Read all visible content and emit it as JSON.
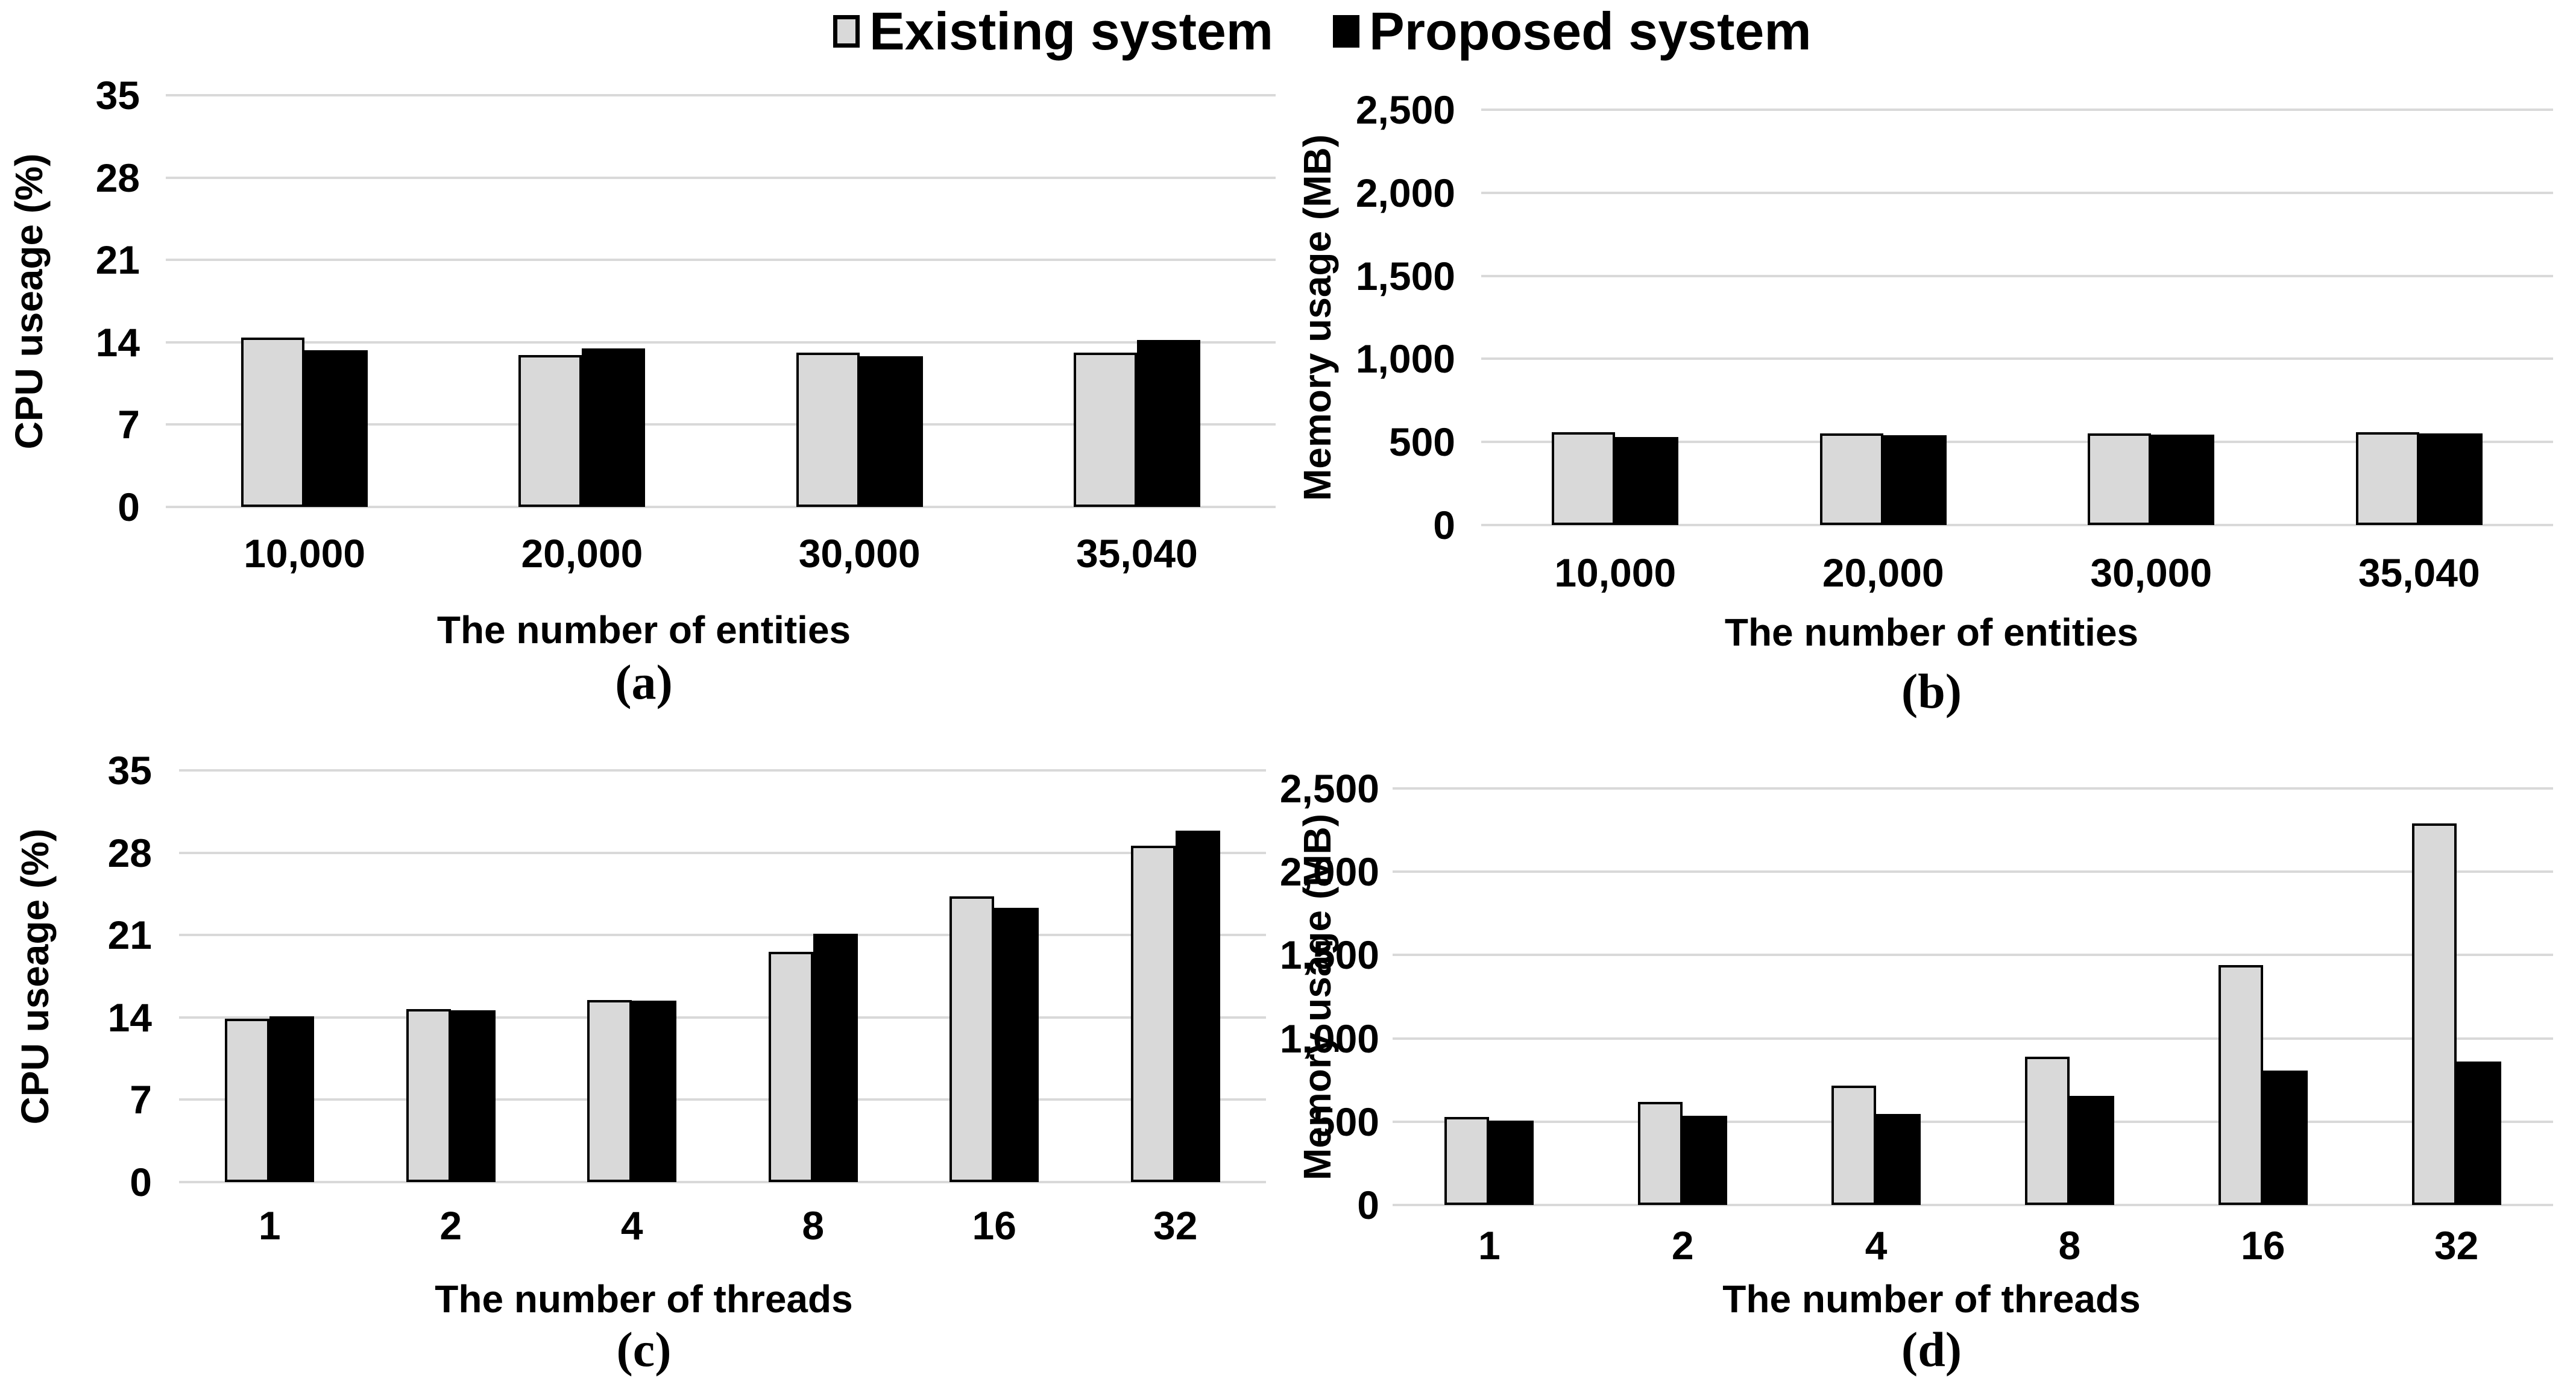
{
  "colors": {
    "existing_fill": "#d9d9d9",
    "proposed_fill": "#000000",
    "bar_border": "#000000",
    "gridline": "#d9d9d9",
    "text": "#000000",
    "background": "#ffffff"
  },
  "legend": {
    "items": [
      {
        "label": "Existing system",
        "color": "#d9d9d9"
      },
      {
        "label": "Proposed system",
        "color": "#000000"
      }
    ]
  },
  "chart_data": [
    {
      "type": "bar",
      "panel_label": "(a)",
      "xlabel": "The number of entities",
      "ylabel": "CPU useage (%)",
      "categories": [
        "10,000",
        "20,000",
        "30,000",
        "35,040"
      ],
      "series": [
        {
          "name": "Existing system",
          "values": [
            14.4,
            12.9,
            13.1,
            13.1
          ]
        },
        {
          "name": "Proposed system",
          "values": [
            13.3,
            13.5,
            12.8,
            14.2
          ]
        }
      ],
      "ylim": [
        0,
        35
      ],
      "yticks": [
        0,
        7,
        14,
        21,
        28,
        35
      ],
      "grid": true,
      "legend_position": "top-center"
    },
    {
      "type": "bar",
      "panel_label": "(b)",
      "xlabel": "The number of entities",
      "ylabel": "Memory usage (MB)",
      "categories": [
        "10,000",
        "20,000",
        "30,000",
        "35,040"
      ],
      "series": [
        {
          "name": "Existing system",
          "values": [
            560,
            550,
            550,
            560
          ]
        },
        {
          "name": "Proposed system",
          "values": [
            530,
            540,
            545,
            550
          ]
        }
      ],
      "ylim": [
        0,
        2500
      ],
      "yticks": [
        0,
        500,
        1000,
        1500,
        2000,
        2500
      ],
      "grid": true,
      "legend_position": "top-center"
    },
    {
      "type": "bar",
      "panel_label": "(c)",
      "xlabel": "The number of threads",
      "ylabel": "CPU useage (%)",
      "categories": [
        "1",
        "2",
        "4",
        "8",
        "16",
        "32"
      ],
      "series": [
        {
          "name": "Existing system",
          "values": [
            13.9,
            14.7,
            15.5,
            19.6,
            24.3,
            28.6
          ]
        },
        {
          "name": "Proposed system",
          "values": [
            14.1,
            14.6,
            15.4,
            21.1,
            23.3,
            29.9
          ]
        }
      ],
      "ylim": [
        0,
        35
      ],
      "yticks": [
        0,
        7,
        14,
        21,
        28,
        35
      ],
      "grid": true,
      "legend_position": "top-center"
    },
    {
      "type": "bar",
      "panel_label": "(d)",
      "xlabel": "The number of threads",
      "ylabel": "Memory usage (MB)",
      "categories": [
        "1",
        "2",
        "4",
        "8",
        "16",
        "32"
      ],
      "series": [
        {
          "name": "Existing system",
          "values": [
            530,
            620,
            715,
            890,
            1440,
            2290
          ]
        },
        {
          "name": "Proposed system",
          "values": [
            505,
            535,
            545,
            655,
            805,
            860
          ]
        }
      ],
      "ylim": [
        0,
        2500
      ],
      "yticks": [
        0,
        500,
        1000,
        1500,
        2000,
        2500
      ],
      "grid": true,
      "legend_position": "top-center"
    }
  ]
}
